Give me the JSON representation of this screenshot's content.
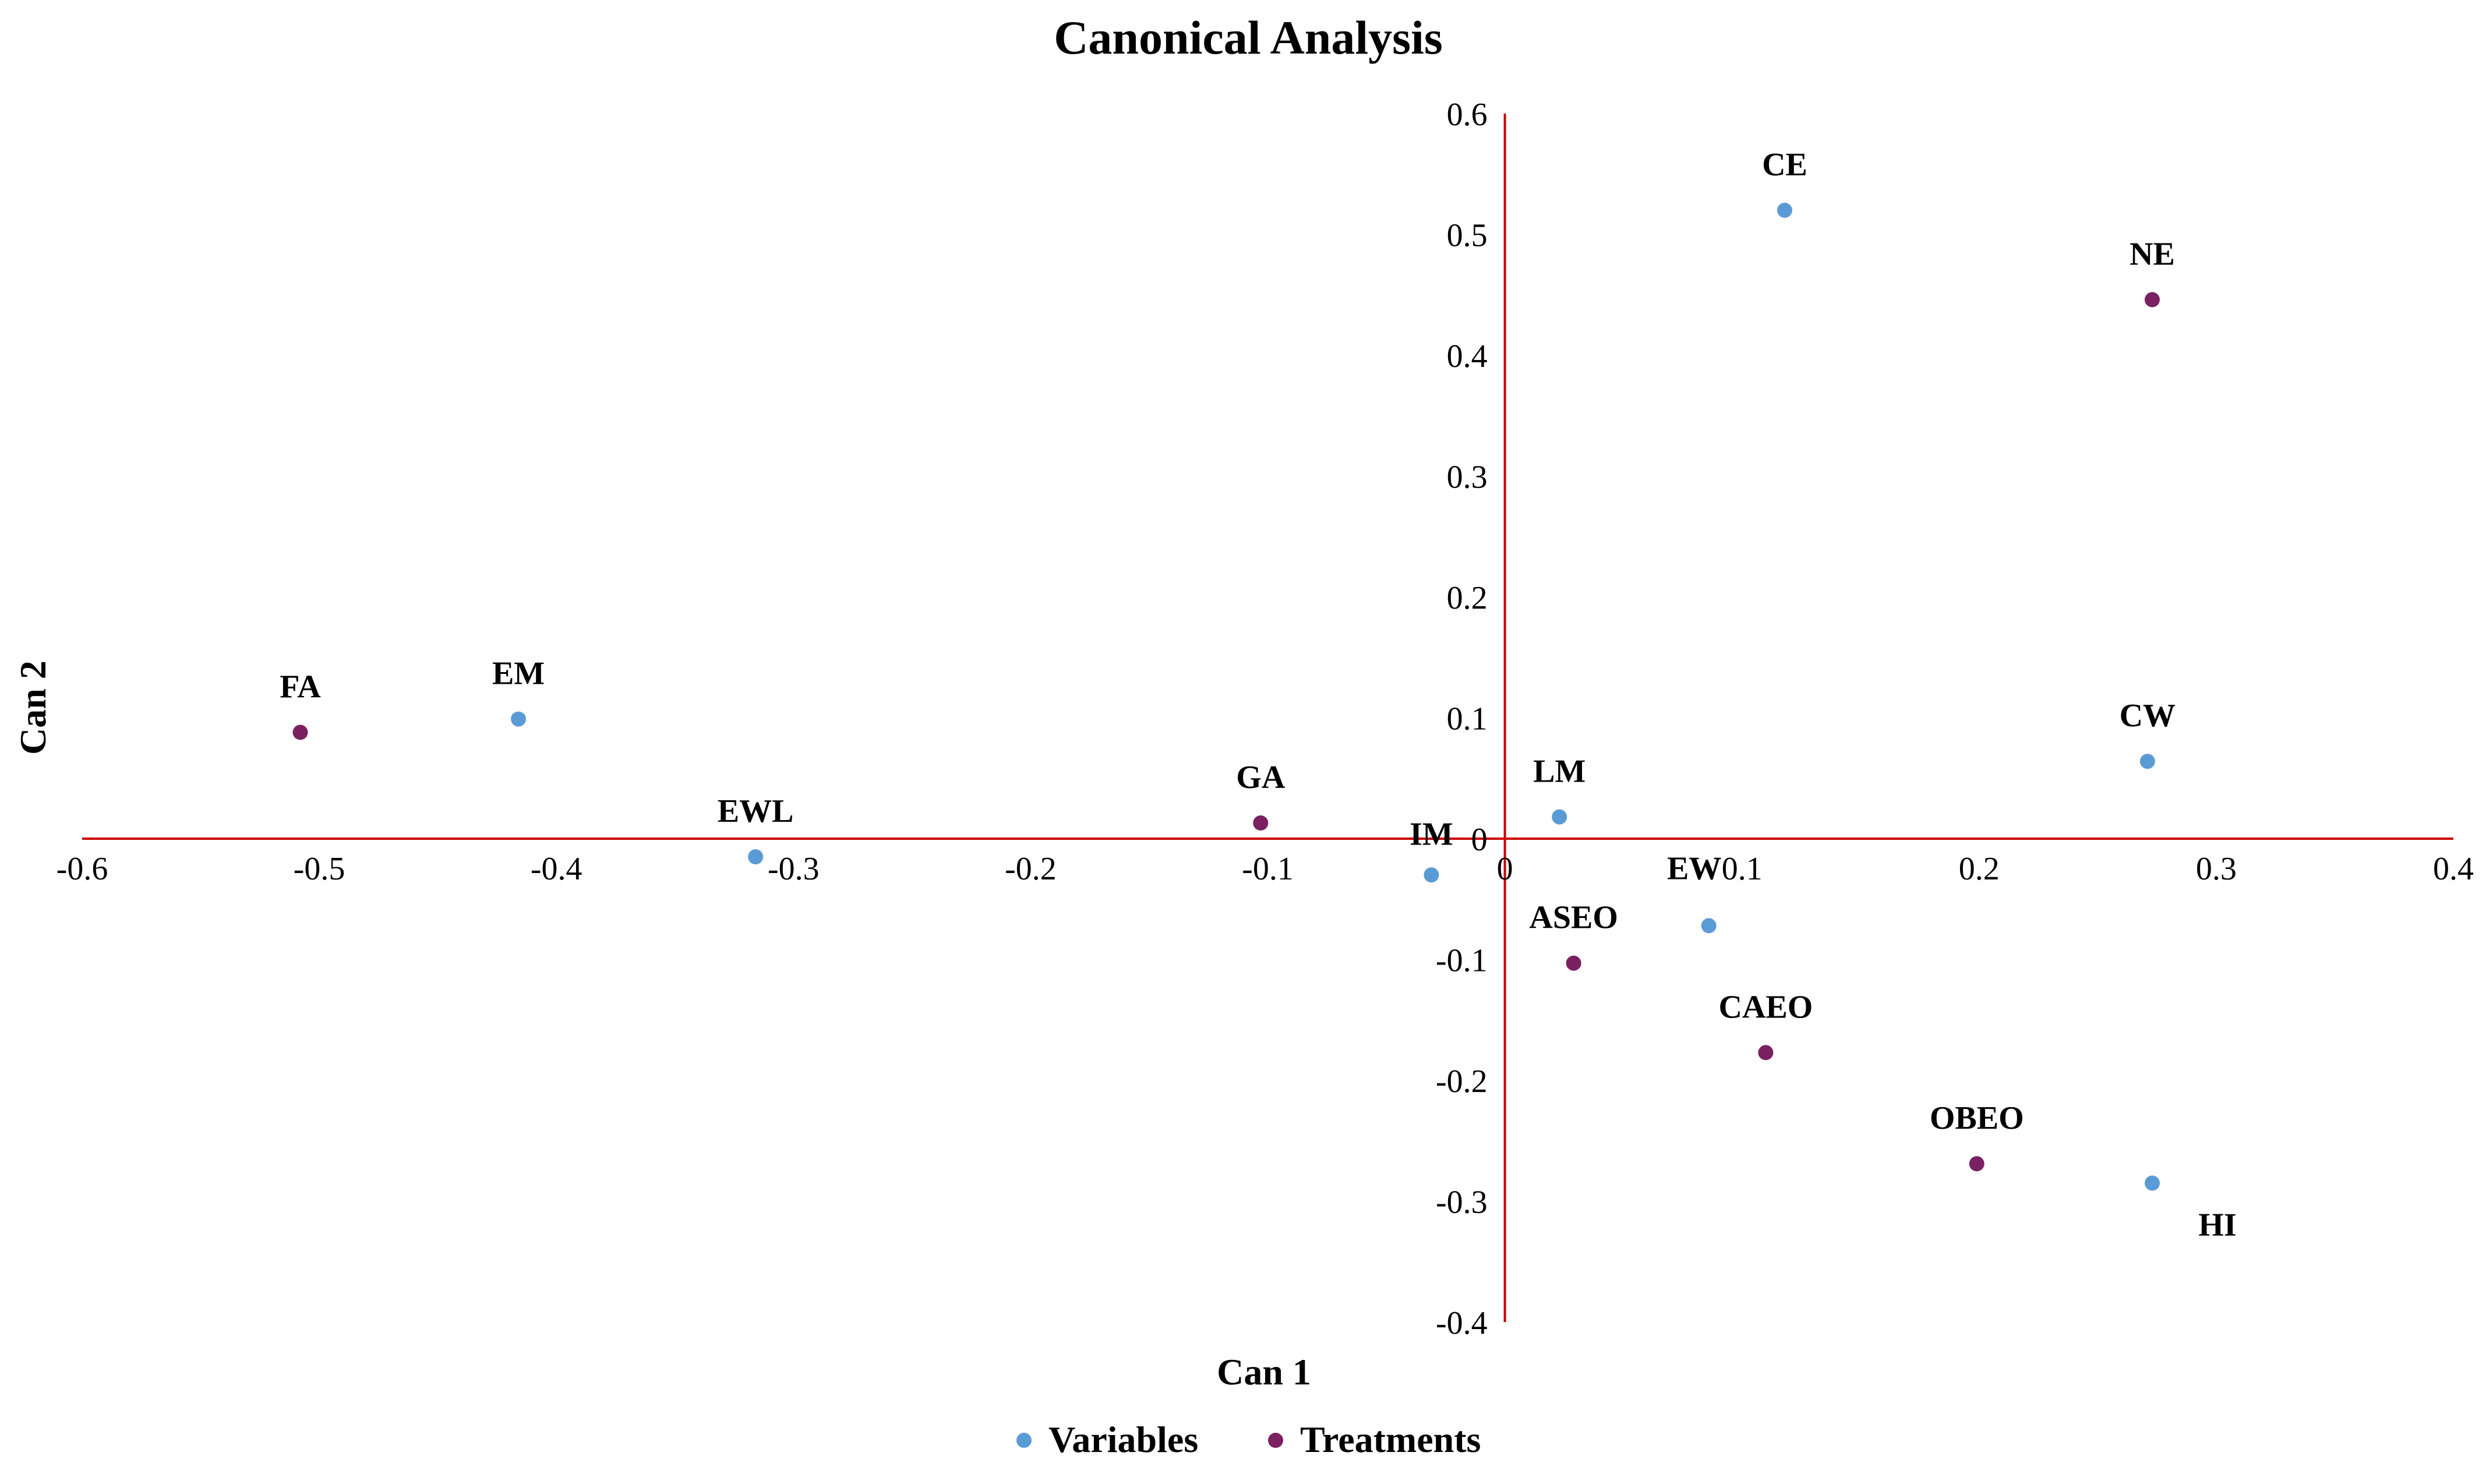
{
  "chart_data": {
    "type": "scatter",
    "title": "Canonical Analysis",
    "xlabel": "Can 1",
    "ylabel": "Can 2",
    "xlim": [
      -0.6,
      0.4
    ],
    "ylim": [
      -0.4,
      0.6
    ],
    "x_ticks": [
      "-0.6",
      "-0.5",
      "-0.4",
      "-0.3",
      "-0.2",
      "-0.1",
      "0",
      "0.1",
      "0.2",
      "0.3",
      "0.4"
    ],
    "y_ticks": [
      "0.6",
      "0.5",
      "0.4",
      "0.3",
      "0.2",
      "0.1",
      "0",
      "-0.1",
      "-0.2",
      "-0.3",
      "-0.4"
    ],
    "axis_color": "#cc0000",
    "series": [
      {
        "name": "Variables",
        "color": "#5b9bd5",
        "points": [
          {
            "label": "CE",
            "x": 0.118,
            "y": 0.52
          },
          {
            "label": "CW",
            "x": 0.271,
            "y": 0.064
          },
          {
            "label": "EM",
            "x": -0.416,
            "y": 0.099
          },
          {
            "label": "EWL",
            "x": -0.316,
            "y": -0.015
          },
          {
            "label": "LM",
            "x": 0.023,
            "y": 0.018
          },
          {
            "label": "IM",
            "x": -0.031,
            "y": -0.03
          },
          {
            "label": "EW",
            "x": 0.086,
            "y": -0.072
          },
          {
            "label": "HI",
            "x": 0.273,
            "y": -0.285
          }
        ]
      },
      {
        "name": "Treatments",
        "color": "#7b2162",
        "points": [
          {
            "label": "NE",
            "x": 0.273,
            "y": 0.446
          },
          {
            "label": "FA",
            "x": -0.508,
            "y": 0.088
          },
          {
            "label": "GA",
            "x": -0.103,
            "y": 0.013
          },
          {
            "label": "ASEO",
            "x": 0.029,
            "y": -0.103
          },
          {
            "label": "CAEO",
            "x": 0.11,
            "y": -0.177
          },
          {
            "label": "OBEO",
            "x": 0.199,
            "y": -0.269
          }
        ]
      }
    ],
    "legend_position": "bottom-center"
  }
}
